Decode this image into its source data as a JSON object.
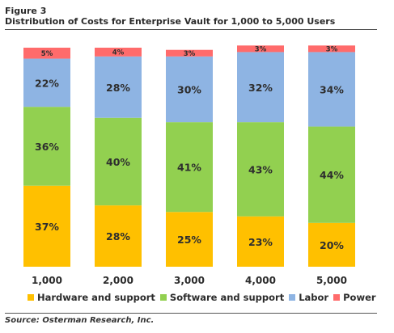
{
  "figure": {
    "label": "Figure 3",
    "title": "Distribution of Costs for Enterprise Vault for 1,000 to 5,000 Users",
    "source": "Source: Osterman Research, Inc."
  },
  "chart_data": {
    "type": "bar",
    "stacked": true,
    "categories": [
      "1,000",
      "2,000",
      "3,000",
      "4,000",
      "5,000"
    ],
    "series": [
      {
        "name": "Hardware and support",
        "color": "#FFC000",
        "values": [
          37,
          28,
          25,
          23,
          20
        ],
        "labels": [
          "37%",
          "28%",
          "25%",
          "23%",
          "20%"
        ]
      },
      {
        "name": "Software and support",
        "color": "#92D050",
        "values": [
          36,
          40,
          41,
          43,
          44
        ],
        "labels": [
          "36%",
          "40%",
          "41%",
          "43%",
          "44%"
        ]
      },
      {
        "name": "Labor",
        "color": "#8EB4E3",
        "values": [
          22,
          28,
          30,
          32,
          34
        ],
        "labels": [
          "22%",
          "28%",
          "30%",
          "32%",
          "34%"
        ]
      },
      {
        "name": "Power",
        "color": "#FF6B6B",
        "values": [
          5,
          4,
          3,
          3,
          3
        ],
        "labels": [
          "5%",
          "4%",
          "3%",
          "3%",
          "3%"
        ]
      }
    ],
    "ylim": [
      0,
      100
    ],
    "grid": false,
    "legend_position": "bottom"
  }
}
